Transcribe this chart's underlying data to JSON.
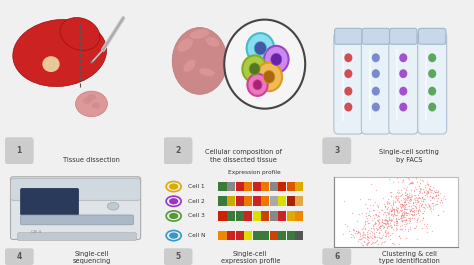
{
  "background_color": "#f0f0f0",
  "labels": {
    "1": "Tissue dissection",
    "2": "Cellular composition of\nthe dissected tissue",
    "3": "Single-cell sorting\nby FACS",
    "4": "Single-cell\nsequencing",
    "5": "Single-cell\nexpression profile",
    "6": "Clustering & cell\ntype identification"
  },
  "label_bg": "#cccccc",
  "label_color": "#555555",
  "text_color": "#333333",
  "cell_colors_row1": [
    "#3a7a3a",
    "#888888",
    "#cc2222",
    "#ee7700",
    "#cc2222",
    "#ee7700",
    "#888888",
    "#cc2200",
    "#dd5500",
    "#ddaa00"
  ],
  "cell_colors_row2": [
    "#3a7a3a",
    "#ccaa00",
    "#cc2222",
    "#ee7700",
    "#cc2222",
    "#ee7700",
    "#aaaaaa",
    "#dddd00",
    "#aa2200",
    "#ddaa44"
  ],
  "cell_colors_row3": [
    "#cc2200",
    "#3a7a3a",
    "#3a7a3a",
    "#cc2222",
    "#dddd00",
    "#cc4400",
    "#888888",
    "#cc2222",
    "#ddaa00",
    "#ee8800"
  ],
  "cell_colors_row4": [
    "#ee8800",
    "#cc2222",
    "#cc2222",
    "#dddd00",
    "#3a7a3a",
    "#3a7a3a",
    "#cc4400",
    "#3a7a3a",
    "#3a7a3a",
    "#555555"
  ],
  "dot_color_1": "#ddaa00",
  "dot_color_2": "#9933cc",
  "dot_color_3": "#559933",
  "dot_color_N": "#3399cc",
  "scatter_color": "#f07070",
  "tube_colors": [
    "#cc3333",
    "#6677cc",
    "#9933cc",
    "#449944"
  ],
  "liver_color": "#cc2222",
  "liver_dark": "#991111",
  "liver_highlight": "#ee4444",
  "brain_color": "#cc8899",
  "brain_dark": "#bb7788"
}
